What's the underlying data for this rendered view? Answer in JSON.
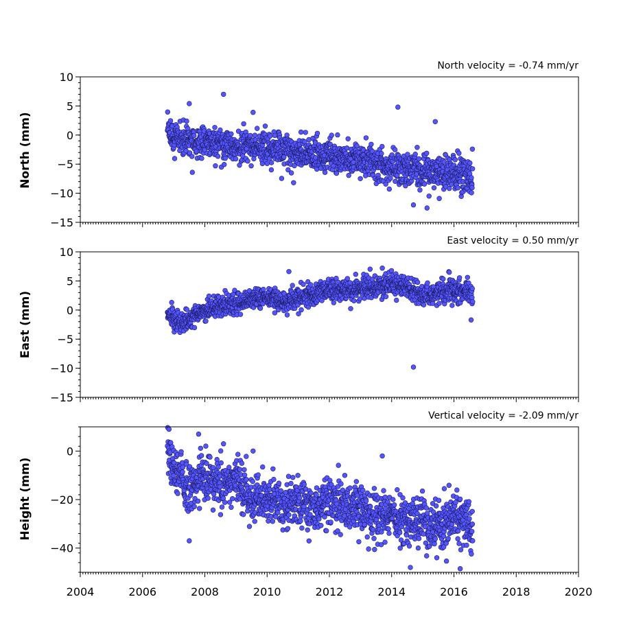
{
  "chart_data": [
    {
      "type": "scatter",
      "title": "North velocity = -0.74 mm/yr",
      "ylabel": "North (mm)",
      "xlim": [
        2004,
        2020
      ],
      "ylim": [
        -15,
        10
      ],
      "y_ticks": [
        10,
        5,
        0,
        -5,
        -10,
        -15
      ],
      "y_tick_labels": [
        "10",
        "5",
        "0",
        "−5",
        "−10",
        "−15"
      ],
      "marker_color": "#5555ff",
      "series": [
        {
          "anchors": [
            [
              2006.8,
              0.0
            ],
            [
              2007.5,
              -1.0
            ],
            [
              2008.5,
              -1.5
            ],
            [
              2009.5,
              -2.0
            ],
            [
              2010.5,
              -2.8
            ],
            [
              2011.5,
              -3.2
            ],
            [
              2012.5,
              -4.0
            ],
            [
              2013.5,
              -5.2
            ],
            [
              2014.5,
              -6.0
            ],
            [
              2015.5,
              -6.5
            ],
            [
              2016.6,
              -7.0
            ]
          ],
          "noise": 1.4,
          "outliers": [
            [
              2007.5,
              5.4
            ],
            [
              2008.6,
              7.0
            ],
            [
              2009.55,
              3.9
            ],
            [
              2014.2,
              4.8
            ],
            [
              2015.4,
              2.3
            ],
            [
              2010.85,
              -8.2
            ],
            [
              2014.7,
              -12.0
            ],
            [
              2015.2,
              -10.5
            ],
            [
              2007.6,
              -6.4
            ]
          ]
        }
      ]
    },
    {
      "type": "scatter",
      "title": "East velocity = 0.50 mm/yr",
      "ylabel": "East (mm)",
      "xlim": [
        2004,
        2020
      ],
      "ylim": [
        -15,
        10
      ],
      "y_ticks": [
        10,
        5,
        0,
        -5,
        -10,
        -15
      ],
      "y_tick_labels": [
        "10",
        "5",
        "0",
        "−5",
        "−10",
        "−15"
      ],
      "marker_color": "#5555ff",
      "series": [
        {
          "anchors": [
            [
              2006.8,
              -1.0
            ],
            [
              2007.2,
              -2.5
            ],
            [
              2007.6,
              -1.2
            ],
            [
              2008.0,
              0.0
            ],
            [
              2008.5,
              0.8
            ],
            [
              2009.0,
              1.0
            ],
            [
              2009.5,
              2.0
            ],
            [
              2010.0,
              2.2
            ],
            [
              2010.5,
              1.5
            ],
            [
              2011.0,
              2.0
            ],
            [
              2011.5,
              2.8
            ],
            [
              2012.0,
              3.5
            ],
            [
              2012.5,
              3.3
            ],
            [
              2013.0,
              3.6
            ],
            [
              2013.5,
              4.0
            ],
            [
              2014.0,
              4.5
            ],
            [
              2014.5,
              3.8
            ],
            [
              2015.0,
              2.5
            ],
            [
              2015.5,
              3.0
            ],
            [
              2016.0,
              3.5
            ],
            [
              2016.6,
              3.0
            ]
          ],
          "noise": 0.9,
          "outliers": [
            [
              2014.7,
              -9.8
            ],
            [
              2016.55,
              -1.7
            ],
            [
              2010.7,
              6.6
            ],
            [
              2013.7,
              7.2
            ],
            [
              2015.85,
              6.5
            ]
          ]
        }
      ]
    },
    {
      "type": "scatter",
      "title": "Vertical velocity = -2.09 mm/yr",
      "ylabel": "Height (mm)",
      "xlim": [
        2004,
        2020
      ],
      "ylim": [
        -50,
        10
      ],
      "y_ticks": [
        0,
        -20,
        -40
      ],
      "y_tick_labels": [
        "0",
        "−20",
        "−40"
      ],
      "marker_color": "#5555ff",
      "series": [
        {
          "anchors": [
            [
              2006.8,
              0.0
            ],
            [
              2007.0,
              -8.0
            ],
            [
              2007.5,
              -15.0
            ],
            [
              2008.0,
              -10.0
            ],
            [
              2008.5,
              -14.0
            ],
            [
              2009.0,
              -12.0
            ],
            [
              2009.5,
              -20.0
            ],
            [
              2010.0,
              -18.0
            ],
            [
              2010.5,
              -22.0
            ],
            [
              2011.0,
              -21.0
            ],
            [
              2011.5,
              -24.0
            ],
            [
              2012.0,
              -21.0
            ],
            [
              2012.5,
              -23.0
            ],
            [
              2013.0,
              -22.0
            ],
            [
              2013.5,
              -27.0
            ],
            [
              2014.0,
              -26.0
            ],
            [
              2014.5,
              -30.0
            ],
            [
              2015.0,
              -30.0
            ],
            [
              2015.5,
              -33.0
            ],
            [
              2016.0,
              -25.0
            ],
            [
              2016.6,
              -34.0
            ]
          ],
          "noise": 5.0,
          "outliers": [
            [
              2007.5,
              -37.0
            ],
            [
              2007.8,
              7.0
            ],
            [
              2008.6,
              3.0
            ],
            [
              2009.55,
              0.0
            ],
            [
              2013.7,
              -2.0
            ],
            [
              2014.6,
              -48.0
            ],
            [
              2016.2,
              -48.5
            ],
            [
              2015.45,
              -44.0
            ],
            [
              2006.85,
              9.0
            ]
          ]
        }
      ]
    }
  ],
  "x_axis": {
    "ticks": [
      2004,
      2006,
      2008,
      2010,
      2012,
      2014,
      2016,
      2018,
      2020
    ],
    "tick_labels": [
      "2004",
      "2006",
      "2008",
      "2010",
      "2012",
      "2014",
      "2016",
      "2018",
      "2020"
    ]
  }
}
